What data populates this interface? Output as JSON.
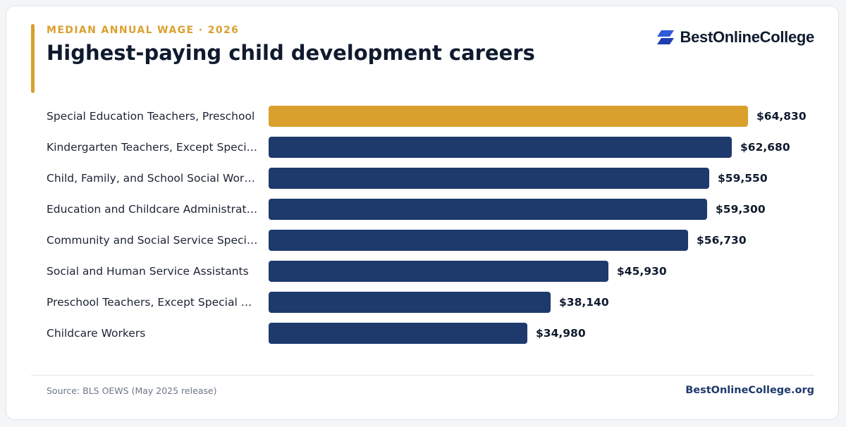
{
  "header": {
    "eyebrow": "MEDIAN ANNUAL WAGE · 2026",
    "title": "Highest-paying child development careers"
  },
  "logo": {
    "text": "BestOnlineCollege",
    "icon": "logo-mark-icon",
    "color": "#2f5bd8"
  },
  "colors": {
    "highlight": "#daa02d",
    "bar": "#1e3a6d"
  },
  "chart_data": {
    "type": "bar",
    "orientation": "horizontal",
    "title": "Highest-paying child development careers",
    "subtitle": "MEDIAN ANNUAL WAGE · 2026",
    "categories": [
      "Special Education Teachers, Preschool",
      "Kindergarten Teachers, Except Special Education",
      "Child, Family, and School Social Workers",
      "Education and Childcare Administrators",
      "Community and Social Service Specialists",
      "Social and Human Service Assistants",
      "Preschool Teachers, Except Special Education",
      "Childcare Workers"
    ],
    "values": [
      64830,
      62680,
      59550,
      59300,
      56730,
      45930,
      38140,
      34980
    ],
    "value_labels": [
      "$64,830",
      "$62,680",
      "$59,550",
      "$59,300",
      "$56,730",
      "$45,930",
      "$38,140",
      "$34,980"
    ],
    "highlight_index": 0,
    "xlim": [
      0,
      64830
    ],
    "grid": false,
    "legend": "none"
  },
  "footer": {
    "source": "Source: BLS OEWS (May 2025 release)",
    "site": "BestOnlineCollege.org"
  }
}
